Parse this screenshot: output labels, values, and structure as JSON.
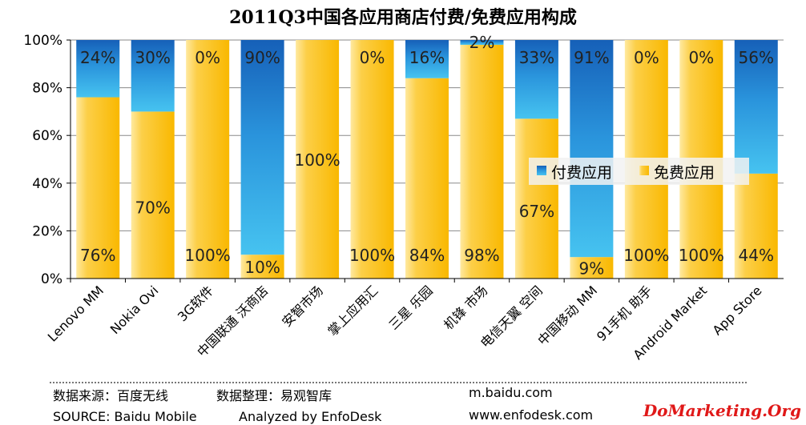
{
  "chart_data": {
    "type": "bar",
    "stacked": true,
    "percent": true,
    "title": "2011Q3中国各应用商店付费/免费应用构成",
    "categories": [
      "Lenovo MM",
      "Nokia Ovi",
      "3G软件",
      "中国联通 沃商店",
      "安智市场",
      "掌上应用汇",
      "三星 乐园",
      "机锋 市场",
      "电信天翼 空间",
      "中国移动 MM",
      "91手机 助手",
      "Android Market",
      "App Store"
    ],
    "series": [
      {
        "name": "免费应用",
        "values": [
          76,
          70,
          100,
          10,
          100,
          100,
          84,
          98,
          67,
          9,
          100,
          100,
          44
        ],
        "labels": [
          "76%",
          "70%",
          "100%",
          "10%",
          "100%",
          "100%",
          "84%",
          "98%",
          "67%",
          "9%",
          "100%",
          "100%",
          "44%"
        ],
        "color": "#fcc214"
      },
      {
        "name": "付费应用",
        "values": [
          24,
          30,
          0,
          90,
          0,
          0,
          16,
          2,
          33,
          91,
          0,
          0,
          56
        ],
        "labels": [
          "24%",
          "30%",
          "0%",
          "90%",
          "",
          "0%",
          "16%",
          "2%",
          "33%",
          "91%",
          "0%",
          "0%",
          "56%"
        ],
        "color": "#2a8ad6"
      }
    ],
    "y_ticks": [
      "0%",
      "20%",
      "40%",
      "60%",
      "80%",
      "100%"
    ],
    "ylim": [
      0,
      100
    ],
    "grid": true,
    "legend_position": "center-right"
  },
  "footer": {
    "source_cn": "数据来源：百度无线",
    "analyst_cn": "数据整理：易观智库",
    "source_en": "SOURCE: Baidu Mobile",
    "analyst_en": "Analyzed by EnfoDesk",
    "url1": "m.baidu.com",
    "url2": "www.enfodesk.com"
  },
  "watermark": "DoMarketing.Org"
}
